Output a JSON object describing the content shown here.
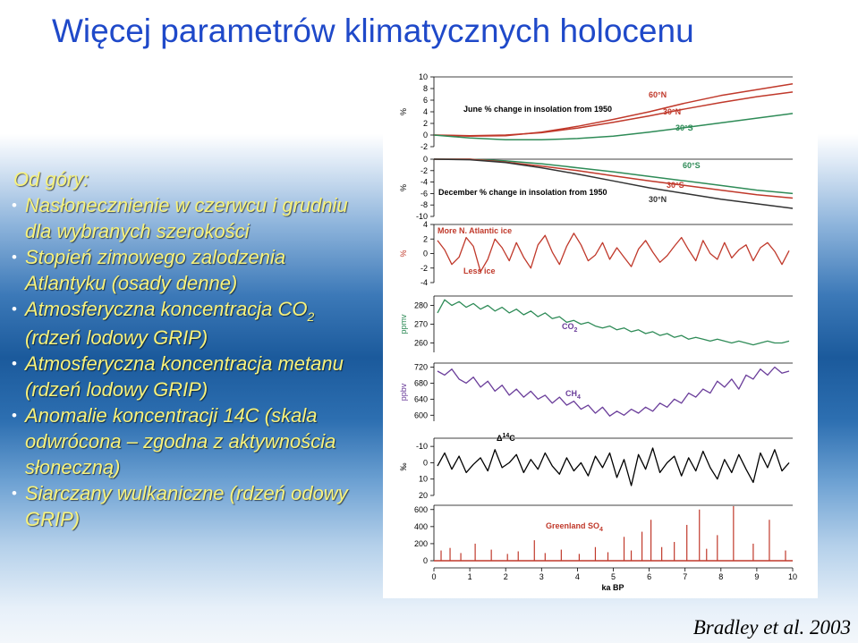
{
  "slide": {
    "title": "Więcej parametrów klimatycznych holocenu",
    "citation": "Bradley et al. 2003"
  },
  "textbox": {
    "heading": "Od góry:",
    "bullets": [
      {
        "text": "Nasłonecznienie w czerwcu i grudniu dla wybranych szerokości"
      },
      {
        "text": "Stopień zimowego zalodzenia Atlantyku (osady denne)"
      },
      {
        "before": "Atmosferyczna koncentracja CO",
        "sub": "2",
        "after": " (rdzeń lodowy GRIP)"
      },
      {
        "text": "Atmosferyczna koncentracja metanu (rdzeń lodowy GRIP)"
      },
      {
        "text": "Anomalie koncentracji 14C (skala odwrócona – zgodna z aktywnościa słoneczną)"
      },
      {
        "text": "Siarczany wulkaniczne (rdzeń odowy GRIP)"
      }
    ]
  },
  "chart_data": {
    "type": "line",
    "xlabel": "ka BP",
    "xlim": [
      0,
      10
    ],
    "xticks": [
      "0",
      "1",
      "2",
      "3",
      "4",
      "5",
      "6",
      "7",
      "8",
      "9",
      "10"
    ],
    "colors": {
      "june": "#c0392b",
      "green": "#2e8b57",
      "red": "#c0392b",
      "purple": "#6a3d9a",
      "black": "#000000"
    },
    "panels": [
      {
        "id": "june",
        "ylabel": "%",
        "ylim": [
          -2,
          10
        ],
        "yticks": [
          "10",
          "8",
          "6",
          "4",
          "2",
          "0",
          "-2"
        ],
        "annotation": "June % change in insolation from 1950",
        "series": [
          {
            "name": "60°N",
            "color": "#c0392b",
            "x": [
              0,
              1,
              2,
              3,
              4,
              5,
              6,
              7,
              8,
              9,
              10
            ],
            "y": [
              0,
              -0.2,
              -0.1,
              0.5,
              1.5,
              2.7,
              4.0,
              5.5,
              6.8,
              7.8,
              8.8
            ]
          },
          {
            "name": "30°N",
            "color": "#c0392b",
            "x": [
              0,
              1,
              2,
              3,
              4,
              5,
              6,
              7,
              8,
              9,
              10
            ],
            "y": [
              0,
              -0.1,
              0,
              0.4,
              1.2,
              2.2,
              3.3,
              4.5,
              5.6,
              6.6,
              7.4
            ]
          },
          {
            "name": "30°S",
            "color": "#2e8b57",
            "x": [
              0,
              1,
              2,
              3,
              4,
              5,
              6,
              7,
              8,
              9,
              10
            ],
            "y": [
              0,
              -0.5,
              -0.8,
              -0.8,
              -0.6,
              -0.2,
              0.5,
              1.3,
              2.1,
              2.9,
              3.7
            ]
          }
        ]
      },
      {
        "id": "december",
        "ylabel": "%",
        "ylim": [
          -10,
          0
        ],
        "yticks": [
          "0",
          "-2",
          "-4",
          "-6",
          "-8",
          "-10"
        ],
        "annotation": "December % change in insolation from 1950",
        "series": [
          {
            "name": "60°S",
            "color": "#2e8b57",
            "x": [
              0,
              1,
              2,
              3,
              4,
              5,
              6,
              7,
              8,
              9,
              10
            ],
            "y": [
              0,
              0,
              -0.3,
              -0.8,
              -1.5,
              -2.2,
              -3.0,
              -3.8,
              -4.6,
              -5.4,
              -6.0
            ]
          },
          {
            "name": "30°S",
            "color": "#c0392b",
            "x": [
              0,
              1,
              2,
              3,
              4,
              5,
              6,
              7,
              8,
              9,
              10
            ],
            "y": [
              0,
              0,
              -0.5,
              -1.2,
              -2.0,
              -2.9,
              -3.8,
              -4.6,
              -5.4,
              -6.2,
              -6.8
            ]
          },
          {
            "name": "30°N",
            "color": "#333333",
            "x": [
              0,
              1,
              2,
              3,
              4,
              5,
              6,
              7,
              8,
              9,
              10
            ],
            "y": [
              0,
              -0.1,
              -0.6,
              -1.5,
              -2.6,
              -3.8,
              -5.0,
              -6.0,
              -7.0,
              -7.8,
              -8.6
            ]
          }
        ]
      },
      {
        "id": "ice",
        "ylabel": "%",
        "ylim": [
          -4,
          4
        ],
        "yticks": [
          "4",
          "2",
          "0",
          "-2",
          "-4"
        ],
        "annotations": [
          "More N. Atlantic ice",
          "Less ice"
        ],
        "series": [
          {
            "name": "",
            "color": "#c0392b",
            "x": [
              0.1,
              0.3,
              0.5,
              0.7,
              0.9,
              1.1,
              1.3,
              1.5,
              1.7,
              1.9,
              2.1,
              2.3,
              2.5,
              2.7,
              2.9,
              3.1,
              3.3,
              3.5,
              3.7,
              3.9,
              4.1,
              4.3,
              4.5,
              4.7,
              4.9,
              5.1,
              5.3,
              5.5,
              5.7,
              5.9,
              6.1,
              6.3,
              6.5,
              6.7,
              6.9,
              7.1,
              7.3,
              7.5,
              7.7,
              7.9,
              8.1,
              8.3,
              8.5,
              8.7,
              8.9,
              9.1,
              9.3,
              9.5,
              9.7,
              9.9
            ],
            "y": [
              1.8,
              0.5,
              -1.5,
              -0.5,
              2.2,
              1.0,
              -2.5,
              -0.8,
              2.0,
              0.8,
              -1.0,
              1.5,
              -0.5,
              -2.0,
              1.2,
              2.5,
              0.2,
              -1.5,
              1.0,
              2.8,
              1.2,
              -1.0,
              -0.2,
              1.5,
              -0.8,
              0.8,
              -0.5,
              -1.8,
              0.6,
              1.8,
              0.2,
              -1.2,
              -0.3,
              1.0,
              2.2,
              0.5,
              -1.0,
              1.8,
              0.0,
              -0.8,
              1.5,
              -0.6,
              0.5,
              1.2,
              -1.0,
              0.8,
              1.5,
              0.3,
              -1.5,
              0.4
            ]
          }
        ]
      },
      {
        "id": "co2",
        "ylabel": "ppmv",
        "ylim": [
          255,
          285
        ],
        "yticks": [
          "280",
          "270",
          "260"
        ],
        "annotation": {
          "text": "CO",
          "sub": "2"
        },
        "series": [
          {
            "name": "",
            "color": "#2e8b57",
            "x": [
              0.1,
              0.3,
              0.5,
              0.7,
              0.9,
              1.1,
              1.3,
              1.5,
              1.7,
              1.9,
              2.1,
              2.3,
              2.5,
              2.7,
              2.9,
              3.1,
              3.3,
              3.5,
              3.7,
              3.9,
              4.1,
              4.3,
              4.5,
              4.7,
              4.9,
              5.1,
              5.3,
              5.5,
              5.7,
              5.9,
              6.1,
              6.3,
              6.5,
              6.7,
              6.9,
              7.1,
              7.3,
              7.5,
              7.7,
              7.9,
              8.1,
              8.3,
              8.5,
              8.7,
              8.9,
              9.1,
              9.3,
              9.5,
              9.7,
              9.9
            ],
            "y": [
              276,
              283,
              280,
              282,
              279,
              281,
              278,
              280,
              277,
              279,
              276,
              278,
              275,
              277,
              274,
              276,
              273,
              274,
              271,
              272,
              270,
              271,
              269,
              268,
              269,
              267,
              268,
              266,
              267,
              265,
              266,
              264,
              265,
              263,
              264,
              262,
              263,
              262,
              261,
              262,
              261,
              260,
              261,
              260,
              259,
              260,
              261,
              260,
              260,
              261
            ]
          }
        ]
      },
      {
        "id": "ch4",
        "ylabel": "ppbv",
        "ylim": [
          585,
          730
        ],
        "yticks": [
          "720",
          "680",
          "640",
          "600"
        ],
        "annotation": {
          "text": "CH",
          "sub": "4"
        },
        "series": [
          {
            "name": "",
            "color": "#6a3d9a",
            "x": [
              0.1,
              0.3,
              0.5,
              0.7,
              0.9,
              1.1,
              1.3,
              1.5,
              1.7,
              1.9,
              2.1,
              2.3,
              2.5,
              2.7,
              2.9,
              3.1,
              3.3,
              3.5,
              3.7,
              3.9,
              4.1,
              4.3,
              4.5,
              4.7,
              4.9,
              5.1,
              5.3,
              5.5,
              5.7,
              5.9,
              6.1,
              6.3,
              6.5,
              6.7,
              6.9,
              7.1,
              7.3,
              7.5,
              7.7,
              7.9,
              8.1,
              8.3,
              8.5,
              8.7,
              8.9,
              9.1,
              9.3,
              9.5,
              9.7,
              9.9
            ],
            "y": [
              710,
              700,
              715,
              690,
              680,
              695,
              670,
              685,
              660,
              675,
              650,
              665,
              645,
              660,
              640,
              650,
              630,
              645,
              625,
              635,
              615,
              625,
              605,
              620,
              598,
              610,
              600,
              615,
              605,
              620,
              610,
              630,
              620,
              640,
              630,
              655,
              645,
              665,
              655,
              685,
              670,
              690,
              665,
              700,
              690,
              715,
              700,
              720,
              705,
              710
            ]
          }
        ]
      },
      {
        "id": "c14",
        "ylabel": "‰",
        "ylim": [
          20,
          -15
        ],
        "yticks": [
          "-10",
          "0",
          "10",
          "20"
        ],
        "annotation": {
          "text": "Δ",
          "sup": "14",
          "after": "C"
        },
        "series": [
          {
            "name": "",
            "color": "#000000",
            "x": [
              0.1,
              0.3,
              0.5,
              0.7,
              0.9,
              1.1,
              1.3,
              1.5,
              1.7,
              1.9,
              2.1,
              2.3,
              2.5,
              2.7,
              2.9,
              3.1,
              3.3,
              3.5,
              3.7,
              3.9,
              4.1,
              4.3,
              4.5,
              4.7,
              4.9,
              5.1,
              5.3,
              5.5,
              5.7,
              5.9,
              6.1,
              6.3,
              6.5,
              6.7,
              6.9,
              7.1,
              7.3,
              7.5,
              7.7,
              7.9,
              8.1,
              8.3,
              8.5,
              8.7,
              8.9,
              9.1,
              9.3,
              9.5,
              9.7,
              9.9
            ],
            "y": [
              2,
              -6,
              4,
              -4,
              6,
              1,
              -3,
              5,
              -8,
              3,
              0,
              -5,
              6,
              -2,
              4,
              -6,
              2,
              7,
              -3,
              5,
              0,
              8,
              -4,
              3,
              -6,
              9,
              -2,
              14,
              -5,
              4,
              -9,
              6,
              0,
              -4,
              8,
              -3,
              5,
              -7,
              3,
              10,
              -2,
              6,
              -5,
              4,
              12,
              -6,
              3,
              -8,
              5,
              0
            ]
          }
        ]
      },
      {
        "id": "so4",
        "ylabel": "",
        "ylim": [
          0,
          650
        ],
        "yticks": [
          "600",
          "400",
          "200",
          "0"
        ],
        "annotation": {
          "text": "Greenland SO",
          "sub": "4"
        },
        "series": [
          {
            "name": "",
            "color": "#c0392b",
            "x": [
              0.2,
              0.45,
              0.75,
              1.15,
              1.6,
              2.05,
              2.35,
              2.8,
              3.1,
              3.55,
              4.05,
              4.5,
              4.85,
              5.3,
              5.5,
              5.8,
              6.05,
              6.35,
              6.7,
              7.05,
              7.4,
              7.6,
              7.9,
              8.35,
              8.9,
              9.35,
              9.8
            ],
            "y": [
              120,
              150,
              90,
              200,
              130,
              80,
              110,
              240,
              90,
              130,
              80,
              160,
              100,
              280,
              120,
              340,
              480,
              160,
              220,
              420,
              600,
              140,
              300,
              640,
              200,
              480,
              120
            ]
          }
        ]
      }
    ]
  }
}
